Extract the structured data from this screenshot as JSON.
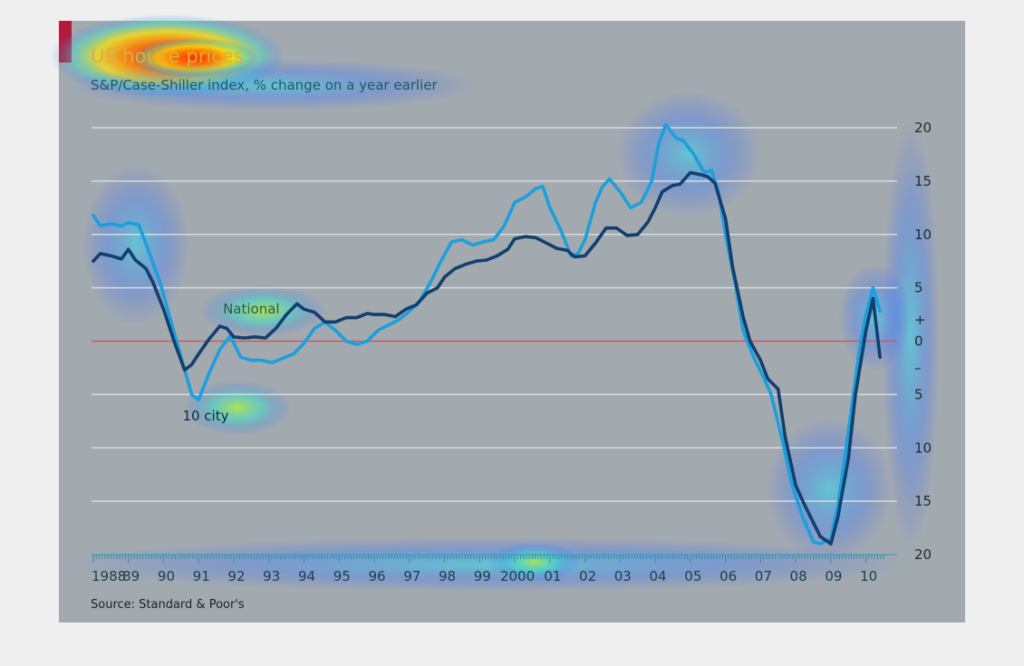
{
  "chart_data": {
    "type": "line",
    "title": "US house prices",
    "subtitle": "S&P/Case-Shiller index, % change on a year earlier",
    "source": "Source: Standard & Poor's",
    "ylim": [
      -20,
      20
    ],
    "yticks": [
      {
        "value": 20,
        "label": "20"
      },
      {
        "value": 15,
        "label": "15"
      },
      {
        "value": 10,
        "label": "10"
      },
      {
        "value": 5,
        "label": "5"
      },
      {
        "value": 2,
        "label": "+"
      },
      {
        "value": 0,
        "label": "0"
      },
      {
        "value": -2.5,
        "label": "–"
      },
      {
        "value": -5,
        "label": "5"
      },
      {
        "value": -10,
        "label": "10"
      },
      {
        "value": -15,
        "label": "15"
      },
      {
        "value": -20,
        "label": "20"
      }
    ],
    "xlim": [
      1987.95,
      2010.5
    ],
    "xticks": [
      {
        "value": 1987.95,
        "label": "1988"
      },
      {
        "value": 1989,
        "label": "89"
      },
      {
        "value": 1990,
        "label": "90"
      },
      {
        "value": 1991,
        "label": "91"
      },
      {
        "value": 1992,
        "label": "92"
      },
      {
        "value": 1993,
        "label": "93"
      },
      {
        "value": 1994,
        "label": "94"
      },
      {
        "value": 1995,
        "label": "95"
      },
      {
        "value": 1996,
        "label": "96"
      },
      {
        "value": 1997,
        "label": "97"
      },
      {
        "value": 1998,
        "label": "98"
      },
      {
        "value": 1999,
        "label": "99"
      },
      {
        "value": 2000,
        "label": "2000"
      },
      {
        "value": 2001,
        "label": "01"
      },
      {
        "value": 2002,
        "label": "02"
      },
      {
        "value": 2003,
        "label": "03"
      },
      {
        "value": 2004,
        "label": "04"
      },
      {
        "value": 2005,
        "label": "05"
      },
      {
        "value": 2006,
        "label": "06"
      },
      {
        "value": 2007,
        "label": "07"
      },
      {
        "value": 2008,
        "label": "08"
      },
      {
        "value": 2009,
        "label": "09"
      },
      {
        "value": 2010,
        "label": "10"
      }
    ],
    "grid": true,
    "series": [
      {
        "name": "National",
        "label_at": [
          1992.5,
          3
        ],
        "color": "#123f6e",
        "points": [
          [
            1988.0,
            7.5
          ],
          [
            1988.2,
            8.2
          ],
          [
            1988.5,
            8.0
          ],
          [
            1988.8,
            7.7
          ],
          [
            1989.0,
            8.6
          ],
          [
            1989.2,
            7.6
          ],
          [
            1989.5,
            6.8
          ],
          [
            1989.7,
            5.5
          ],
          [
            1990.0,
            3.0
          ],
          [
            1990.3,
            0.0
          ],
          [
            1990.6,
            -2.7
          ],
          [
            1990.8,
            -2.2
          ],
          [
            1991.0,
            -1.2
          ],
          [
            1991.3,
            0.2
          ],
          [
            1991.6,
            1.4
          ],
          [
            1991.8,
            1.2
          ],
          [
            1992.0,
            0.4
          ],
          [
            1992.3,
            0.3
          ],
          [
            1992.6,
            0.4
          ],
          [
            1992.9,
            0.3
          ],
          [
            1993.2,
            1.2
          ],
          [
            1993.5,
            2.5
          ],
          [
            1993.8,
            3.5
          ],
          [
            1994.0,
            3.0
          ],
          [
            1994.3,
            2.7
          ],
          [
            1994.6,
            1.8
          ],
          [
            1994.9,
            1.8
          ],
          [
            1995.2,
            2.2
          ],
          [
            1995.5,
            2.2
          ],
          [
            1995.8,
            2.6
          ],
          [
            1996.0,
            2.5
          ],
          [
            1996.3,
            2.5
          ],
          [
            1996.6,
            2.3
          ],
          [
            1996.9,
            3.0
          ],
          [
            1997.2,
            3.4
          ],
          [
            1997.5,
            4.5
          ],
          [
            1997.8,
            5.0
          ],
          [
            1998.0,
            6.0
          ],
          [
            1998.3,
            6.8
          ],
          [
            1998.6,
            7.2
          ],
          [
            1998.9,
            7.5
          ],
          [
            1999.2,
            7.6
          ],
          [
            1999.5,
            8.0
          ],
          [
            1999.8,
            8.6
          ],
          [
            2000.0,
            9.6
          ],
          [
            2000.3,
            9.8
          ],
          [
            2000.6,
            9.7
          ],
          [
            2000.9,
            9.2
          ],
          [
            2001.2,
            8.7
          ],
          [
            2001.5,
            8.5
          ],
          [
            2001.7,
            7.9
          ],
          [
            2002.0,
            8.0
          ],
          [
            2002.3,
            9.2
          ],
          [
            2002.6,
            10.6
          ],
          [
            2002.9,
            10.6
          ],
          [
            2003.2,
            9.9
          ],
          [
            2003.5,
            10.0
          ],
          [
            2003.8,
            11.2
          ],
          [
            2004.0,
            12.5
          ],
          [
            2004.2,
            14.0
          ],
          [
            2004.5,
            14.6
          ],
          [
            2004.7,
            14.7
          ],
          [
            2005.0,
            15.8
          ],
          [
            2005.3,
            15.6
          ],
          [
            2005.5,
            15.4
          ],
          [
            2005.7,
            14.8
          ],
          [
            2006.0,
            11.5
          ],
          [
            2006.2,
            7.0
          ],
          [
            2006.5,
            2.3
          ],
          [
            2006.7,
            0.0
          ],
          [
            2007.0,
            -1.8
          ],
          [
            2007.2,
            -3.5
          ],
          [
            2007.5,
            -4.5
          ],
          [
            2007.7,
            -9.0
          ],
          [
            2008.0,
            -13.5
          ],
          [
            2008.2,
            -15.0
          ],
          [
            2008.5,
            -17.0
          ],
          [
            2008.7,
            -18.3
          ],
          [
            2009.0,
            -19.0
          ],
          [
            2009.2,
            -16.5
          ],
          [
            2009.5,
            -11.0
          ],
          [
            2009.7,
            -5.0
          ],
          [
            2010.0,
            1.0
          ],
          [
            2010.2,
            4.0
          ],
          [
            2010.4,
            -1.5
          ]
        ]
      },
      {
        "name": "10 city",
        "label_at": [
          1991.2,
          -7.0
        ],
        "color": "#1aa0dc",
        "points": [
          [
            1988.0,
            11.8
          ],
          [
            1988.2,
            10.8
          ],
          [
            1988.5,
            11.0
          ],
          [
            1988.8,
            10.8
          ],
          [
            1989.0,
            11.1
          ],
          [
            1989.3,
            10.9
          ],
          [
            1989.6,
            8.2
          ],
          [
            1989.9,
            5.5
          ],
          [
            1990.2,
            2.0
          ],
          [
            1990.5,
            -1.5
          ],
          [
            1990.8,
            -5.0
          ],
          [
            1991.0,
            -5.5
          ],
          [
            1991.3,
            -3.0
          ],
          [
            1991.6,
            -0.8
          ],
          [
            1991.9,
            0.5
          ],
          [
            1992.2,
            -1.5
          ],
          [
            1992.5,
            -1.8
          ],
          [
            1992.8,
            -1.8
          ],
          [
            1993.1,
            -2.0
          ],
          [
            1993.4,
            -1.6
          ],
          [
            1993.7,
            -1.2
          ],
          [
            1994.0,
            -0.2
          ],
          [
            1994.3,
            1.2
          ],
          [
            1994.6,
            1.8
          ],
          [
            1994.9,
            1.0
          ],
          [
            1995.2,
            0.0
          ],
          [
            1995.5,
            -0.3
          ],
          [
            1995.8,
            0.0
          ],
          [
            1996.1,
            1.0
          ],
          [
            1996.4,
            1.5
          ],
          [
            1996.7,
            2.0
          ],
          [
            1997.0,
            2.8
          ],
          [
            1997.3,
            3.8
          ],
          [
            1997.6,
            5.5
          ],
          [
            1997.9,
            7.5
          ],
          [
            1998.2,
            9.3
          ],
          [
            1998.5,
            9.5
          ],
          [
            1998.8,
            9.0
          ],
          [
            1999.1,
            9.3
          ],
          [
            1999.4,
            9.5
          ],
          [
            1999.7,
            10.8
          ],
          [
            2000.0,
            13.0
          ],
          [
            2000.3,
            13.5
          ],
          [
            2000.6,
            14.3
          ],
          [
            2000.8,
            14.5
          ],
          [
            2001.0,
            12.5
          ],
          [
            2001.3,
            10.5
          ],
          [
            2001.6,
            8.0
          ],
          [
            2001.8,
            8.2
          ],
          [
            2002.0,
            9.5
          ],
          [
            2002.3,
            13.0
          ],
          [
            2002.5,
            14.5
          ],
          [
            2002.7,
            15.2
          ],
          [
            2003.0,
            14.0
          ],
          [
            2003.3,
            12.5
          ],
          [
            2003.6,
            13.0
          ],
          [
            2003.9,
            15.0
          ],
          [
            2004.1,
            18.5
          ],
          [
            2004.3,
            20.3
          ],
          [
            2004.6,
            19.0
          ],
          [
            2004.8,
            18.8
          ],
          [
            2005.1,
            17.5
          ],
          [
            2005.4,
            15.8
          ],
          [
            2005.6,
            16.0
          ],
          [
            2005.8,
            14.0
          ],
          [
            2006.0,
            10.0
          ],
          [
            2006.3,
            5.0
          ],
          [
            2006.5,
            1.0
          ],
          [
            2006.8,
            -1.5
          ],
          [
            2007.1,
            -3.5
          ],
          [
            2007.3,
            -5.0
          ],
          [
            2007.6,
            -9.0
          ],
          [
            2007.9,
            -13.5
          ],
          [
            2008.2,
            -16.5
          ],
          [
            2008.5,
            -18.8
          ],
          [
            2008.7,
            -19.0
          ],
          [
            2009.0,
            -18.5
          ],
          [
            2009.2,
            -15.5
          ],
          [
            2009.5,
            -8.5
          ],
          [
            2009.8,
            -1.0
          ],
          [
            2010.0,
            2.5
          ],
          [
            2010.2,
            5.0
          ],
          [
            2010.4,
            2.8
          ]
        ]
      }
    ]
  }
}
